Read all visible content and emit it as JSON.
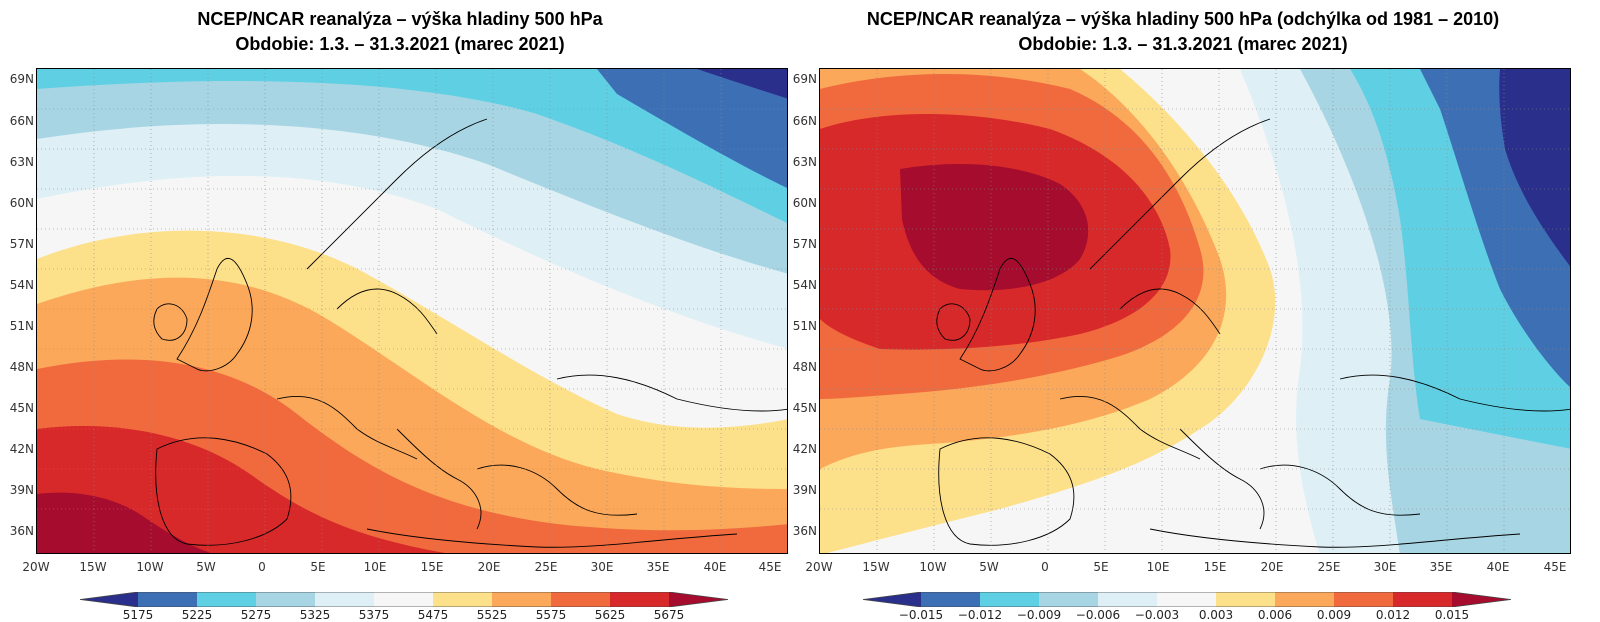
{
  "left": {
    "title_line1": "NCEP/NCAR reanalýza – výška hladiny 500 hPa",
    "title_line2": "Obdobie: 1.3. – 31.3.2021 (marec 2021)",
    "colorbar_labels": [
      "5175",
      "5225",
      "5275",
      "5325",
      "5375",
      "5475",
      "5525",
      "5575",
      "5625",
      "5675"
    ]
  },
  "right": {
    "title_line1": "NCEP/NCAR reanalýza – výška hladiny 500 hPa (odchýlka od 1981 – 2010)",
    "title_line2": "Obdobie: 1.3. – 31.3.2021 (marec 2021)",
    "colorbar_labels": [
      "−0.015",
      "−0.012",
      "−0.009",
      "−0.006",
      "−0.003",
      "0.003",
      "0.006",
      "0.009",
      "0.012",
      "0.015"
    ]
  },
  "axes": {
    "lat_labels": [
      "69N",
      "66N",
      "63N",
      "60N",
      "57N",
      "54N",
      "51N",
      "48N",
      "45N",
      "42N",
      "39N",
      "36N"
    ],
    "lon_labels": [
      "20W",
      "15W",
      "10W",
      "5W",
      "0",
      "5E",
      "10E",
      "15E",
      "20E",
      "25E",
      "30E",
      "35E",
      "40E",
      "45E"
    ]
  },
  "colors": {
    "palette": [
      "#2b2f8c",
      "#3d6fb5",
      "#5fd0e3",
      "#a8d5e4",
      "#def0f6",
      "#f6f6f6",
      "#fde08a",
      "#fba85a",
      "#f06a3e",
      "#d8292a",
      "#a50c2e"
    ]
  }
}
